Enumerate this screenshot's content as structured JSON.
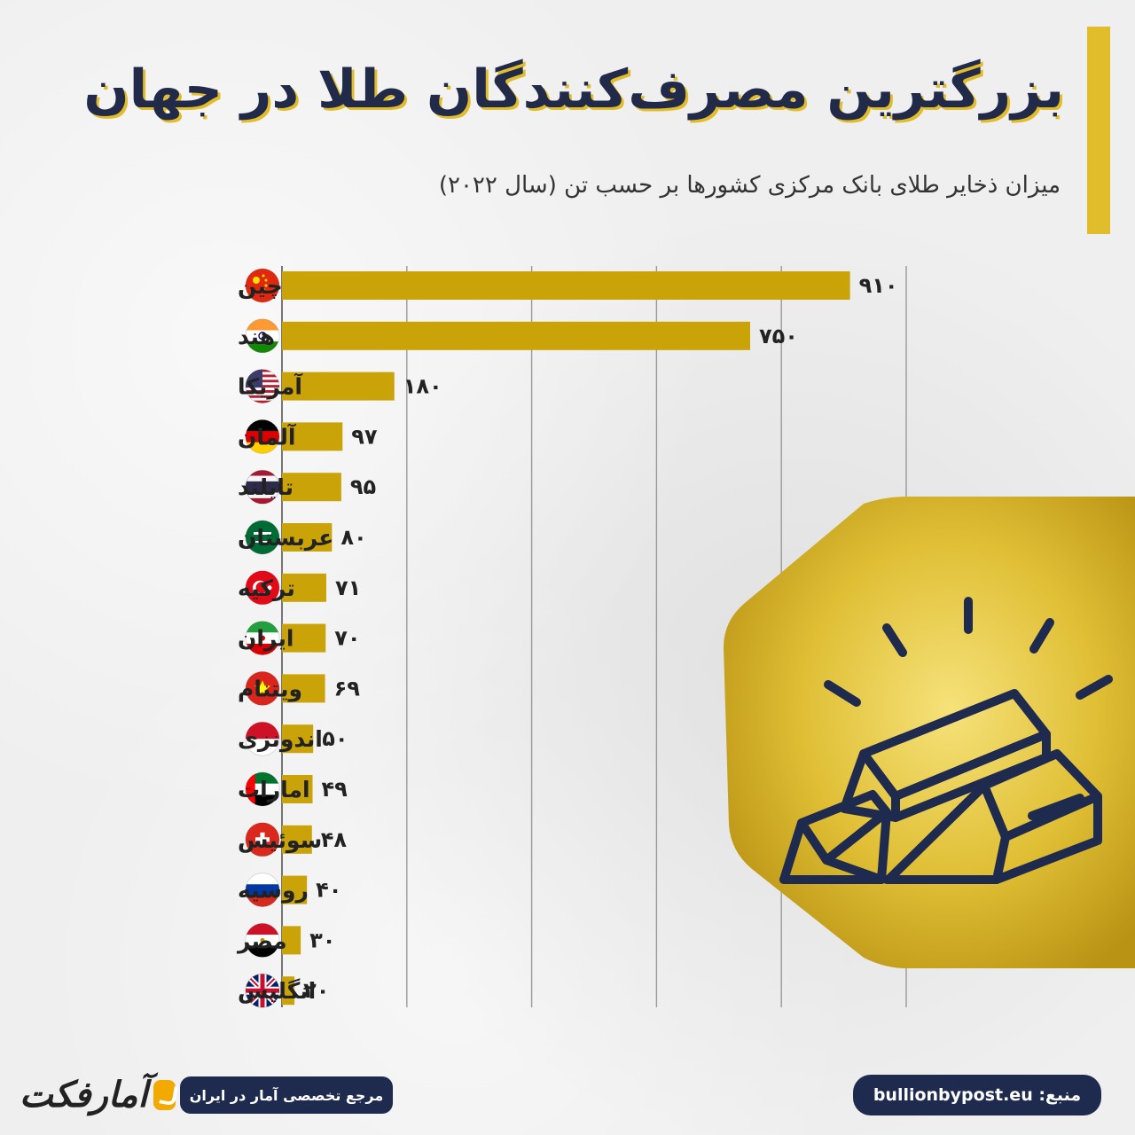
{
  "header": {
    "title": "بزرگترین مصرف‌کنندگان طلا در جهان",
    "subtitle": "میزان ذخایر طلای بانک مرکزی کشورها بر حسب تن (سال ۲۰۲۲)"
  },
  "chart_data": {
    "type": "bar",
    "orientation": "horizontal",
    "title": "بزرگترین مصرف‌کنندگان طلا در جهان",
    "subtitle": "میزان ذخایر طلای بانک مرکزی کشورها بر حسب تن (سال ۲۰۲۲)",
    "categories": [
      "چین",
      "هند",
      "آمریکا",
      "آلمان",
      "تایلند",
      "عربستان",
      "ترکیه",
      "ایران",
      "ویتنام",
      "اندونزی",
      "امارات",
      "سوئیس",
      "روسیه",
      "مصر",
      "انگلیس"
    ],
    "values": [
      910,
      750,
      180,
      97,
      95,
      80,
      71,
      70,
      69,
      50,
      49,
      48,
      40,
      30,
      20
    ],
    "value_labels": [
      "۹۱۰",
      "۷۵۰",
      "۱۸۰",
      "۹۷",
      "۹۵",
      "۸۰",
      "۷۱",
      "۷۰",
      "۶۹",
      "۵۰",
      "۴۹",
      "۴۸",
      "۴۰",
      "۳۰",
      "۲۰"
    ],
    "xlim": [
      0,
      1000
    ],
    "grid": true,
    "bar_color": "#c9a307"
  },
  "flags": [
    "china",
    "india",
    "usa",
    "germany",
    "thailand",
    "saudi",
    "turkey",
    "iran",
    "vietnam",
    "indonesia",
    "uae",
    "switzerland",
    "russia",
    "egypt",
    "uk"
  ],
  "footer": {
    "logo_text": "آمارفکت",
    "tagline": "مرجع تخصصی آمار در ایران",
    "source": "منبع: bullionbypost.eu"
  },
  "icons": {
    "illustration": "gold-bars-icon"
  },
  "colors": {
    "accent": "#e2bd2b",
    "navy": "#1f2a4f",
    "gold": "#c9a307"
  }
}
